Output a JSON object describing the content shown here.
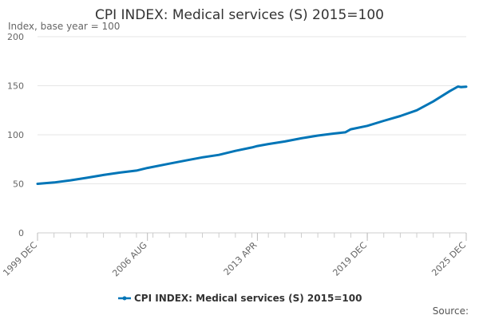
{
  "chart_data": {
    "type": "line",
    "title": "CPI INDEX: Medical services (S) 2015=100",
    "subtitle": "Index, base year = 100",
    "ylim": [
      0,
      200
    ],
    "yticks": [
      0,
      50,
      100,
      150,
      200
    ],
    "xtick_labels": [
      "1999 DEC",
      "2006 AUG",
      "2013 APR",
      "2019 DEC",
      "2025 DEC"
    ],
    "xtick_values": [
      0,
      80,
      160,
      240,
      312
    ],
    "x_range": [
      0,
      312
    ],
    "minor_tick_step": 12,
    "series": [
      {
        "name": "CPI INDEX: Medical services (S) 2015=100",
        "color": "#0075b7",
        "points": [
          [
            0,
            50.0
          ],
          [
            12,
            51.4
          ],
          [
            24,
            53.6
          ],
          [
            36,
            56.2
          ],
          [
            48,
            59.0
          ],
          [
            60,
            61.5
          ],
          [
            72,
            63.5
          ],
          [
            80,
            66.2
          ],
          [
            96,
            70.6
          ],
          [
            108,
            73.8
          ],
          [
            120,
            77.0
          ],
          [
            132,
            79.5
          ],
          [
            144,
            83.6
          ],
          [
            156,
            87.1
          ],
          [
            160,
            88.5
          ],
          [
            168,
            90.6
          ],
          [
            180,
            93.2
          ],
          [
            192,
            96.4
          ],
          [
            204,
            99.2
          ],
          [
            216,
            101.3
          ],
          [
            224,
            102.5
          ],
          [
            228,
            105.6
          ],
          [
            240,
            109.1
          ],
          [
            252,
            114.2
          ],
          [
            264,
            119.1
          ],
          [
            276,
            125.0
          ],
          [
            288,
            134.0
          ],
          [
            300,
            144.5
          ],
          [
            306,
            149.2
          ],
          [
            308,
            148.6
          ],
          [
            312,
            149.0
          ]
        ]
      }
    ]
  },
  "legend": {
    "label": "CPI INDEX: Medical services (S) 2015=100"
  },
  "footer": {
    "source_label": "Source:"
  }
}
